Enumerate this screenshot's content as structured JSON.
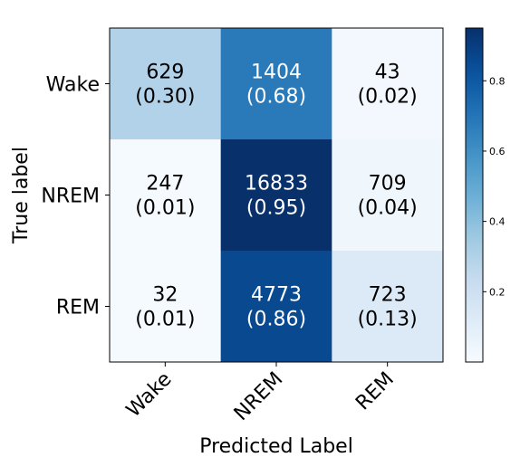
{
  "chart_data": {
    "type": "heatmap",
    "title": "",
    "xlabel": "Predicted Label",
    "ylabel": "True label",
    "x_categories": [
      "Wake",
      "NREM",
      "REM"
    ],
    "y_categories": [
      "Wake",
      "NREM",
      "REM"
    ],
    "counts": [
      [
        629,
        1404,
        43
      ],
      [
        247,
        16833,
        709
      ],
      [
        32,
        4773,
        723
      ]
    ],
    "normalized": [
      [
        0.3,
        0.68,
        0.02
      ],
      [
        0.01,
        0.95,
        0.04
      ],
      [
        0.01,
        0.86,
        0.13
      ]
    ],
    "cell_labels": [
      [
        {
          "count": "629",
          "ratio": "(0.30)"
        },
        {
          "count": "1404",
          "ratio": "(0.68)"
        },
        {
          "count": "43",
          "ratio": "(0.02)"
        }
      ],
      [
        {
          "count": "247",
          "ratio": "(0.01)"
        },
        {
          "count": "16833",
          "ratio": "(0.95)"
        },
        {
          "count": "709",
          "ratio": "(0.04)"
        }
      ],
      [
        {
          "count": "32",
          "ratio": "(0.01)"
        },
        {
          "count": "4773",
          "ratio": "(0.86)"
        },
        {
          "count": "723",
          "ratio": "(0.13)"
        }
      ]
    ],
    "colormap": "Blues",
    "colorbar": {
      "range": [
        0.0,
        0.95
      ],
      "ticks": [
        0.2,
        0.4,
        0.6,
        0.8
      ],
      "tick_labels": [
        "0.2",
        "0.4",
        "0.6",
        "0.8"
      ]
    },
    "text_color_threshold": 0.475,
    "colors": {
      "light_text": "#ffffff",
      "dark_text": "#000000"
    }
  }
}
